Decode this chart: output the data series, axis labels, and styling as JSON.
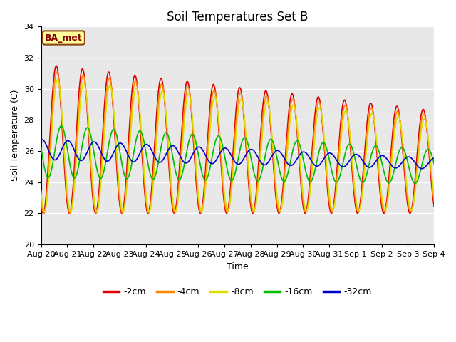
{
  "title": "Soil Temperatures Set B",
  "xlabel": "Time",
  "ylabel": "Soil Temperature (C)",
  "ylim": [
    20,
    34
  ],
  "bg_color": "#e8e8e8",
  "bg_band_color": "#d4d4d4",
  "fig_bg": "#ffffff",
  "annotation": "BA_met",
  "legend_labels": [
    "-2cm",
    "-4cm",
    "-8cm",
    "-16cm",
    "-32cm"
  ],
  "legend_colors": [
    "#dd0000",
    "#ff8800",
    "#dddd00",
    "#00bb00",
    "#0000cc"
  ],
  "xtick_labels": [
    "Aug 20",
    "Aug 21",
    "Aug 22",
    "Aug 23",
    "Aug 24",
    "Aug 25",
    "Aug 26",
    "Aug 27",
    "Aug 28",
    "Aug 29",
    "Aug 30",
    "Aug 31",
    "Sep 1",
    "Sep 2",
    "Sep 3",
    "Sep 4"
  ],
  "grid_color": "#ffffff",
  "title_fontsize": 12,
  "axis_fontsize": 9,
  "tick_fontsize": 8
}
